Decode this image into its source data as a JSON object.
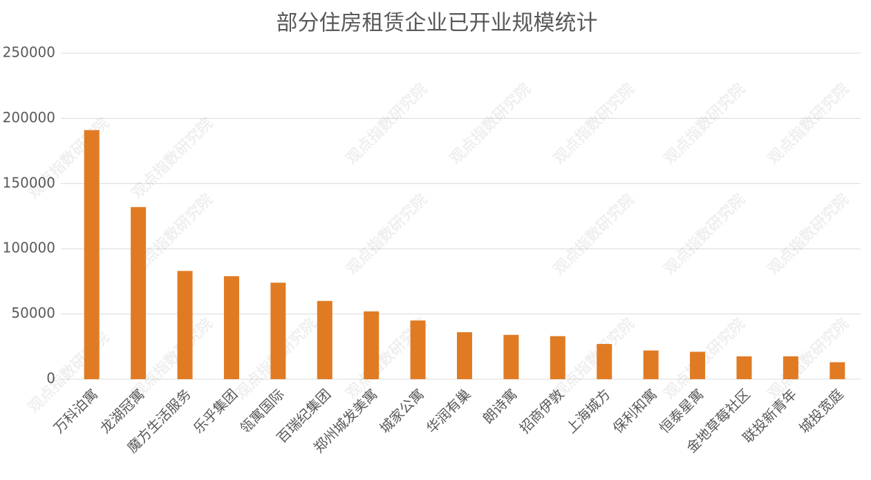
{
  "chart_data": {
    "type": "bar",
    "title": "部分住房租赁企业已开业规模统计",
    "categories": [
      "万科泊寓",
      "龙湖冠寓",
      "魔方生活服务",
      "乐乎集团",
      "瓴寓国际",
      "百瑞纪集团",
      "郑州城发美寓",
      "城家公寓",
      "华润有巢",
      "朗诗寓",
      "招商伊敦",
      "上海城方",
      "保利和寓",
      "恒泰星寓",
      "金地草莓社区",
      "联投新青年",
      "城投宽庭"
    ],
    "values": [
      191000,
      132000,
      83000,
      79000,
      74000,
      60000,
      52000,
      45000,
      36000,
      34000,
      33000,
      27000,
      22000,
      21000,
      17500,
      17500,
      13000
    ],
    "color": "#e07b24",
    "ylim": [
      0,
      250000
    ],
    "yticks": [
      0,
      50000,
      100000,
      150000,
      200000,
      250000
    ],
    "grid": true,
    "watermark": "观点指数研究院"
  }
}
